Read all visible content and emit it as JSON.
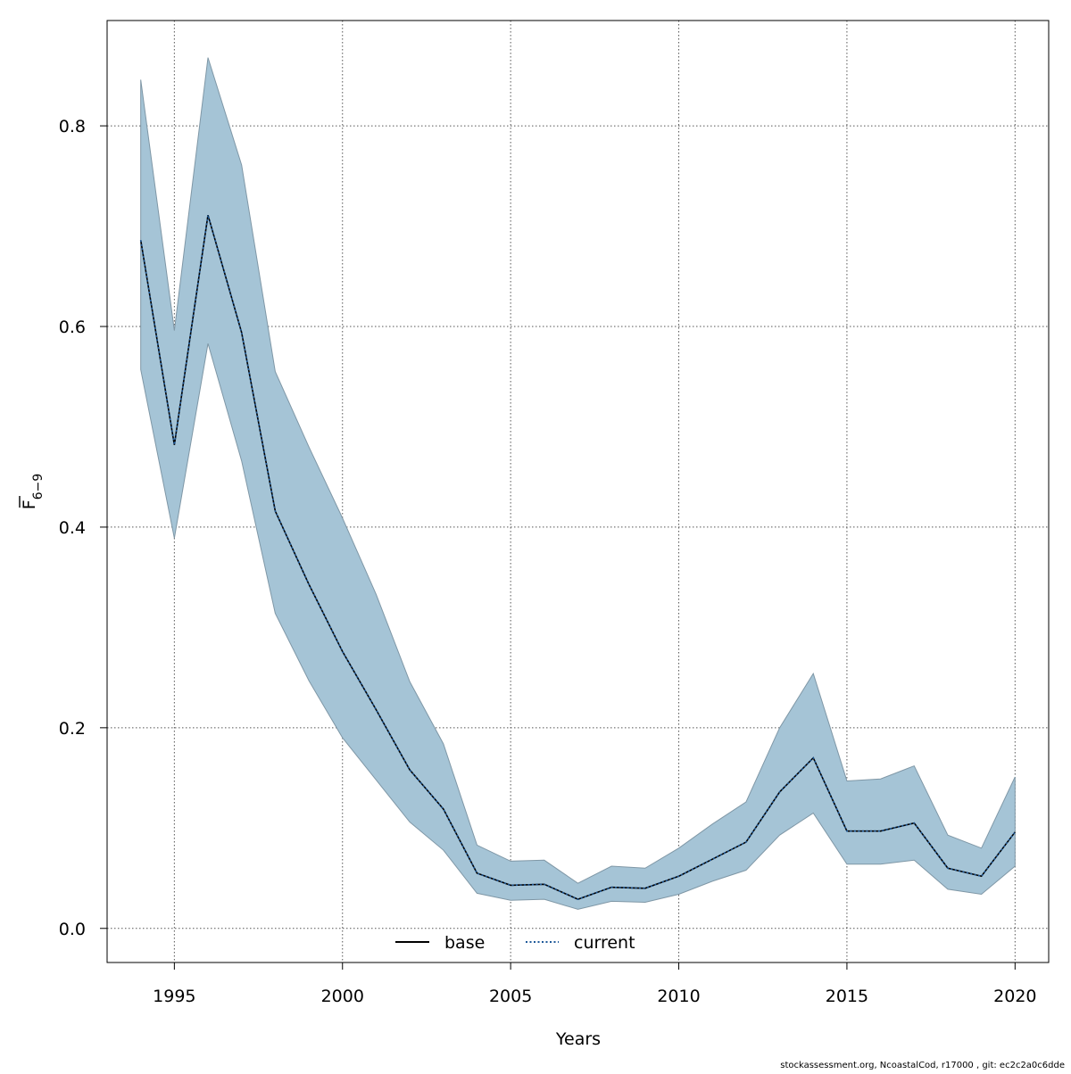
{
  "chart_data": {
    "type": "area",
    "xlabel": "Years",
    "ylabel": {
      "main": "F",
      "subscript": "6−9",
      "overline": true
    },
    "xlim": [
      1993,
      2021
    ],
    "ylim": [
      -0.034,
      0.905
    ],
    "x_ticks": [
      1995,
      2000,
      2005,
      2010,
      2015,
      2020
    ],
    "y_ticks": [
      0.0,
      0.2,
      0.4,
      0.6,
      0.8
    ],
    "y_tick_labels": [
      "0.0",
      "0.2",
      "0.4",
      "0.6",
      "0.8"
    ],
    "x_tick_labels": [
      "1995",
      "2000",
      "2005",
      "2010",
      "2015",
      "2020"
    ],
    "grid": true,
    "legend_position": "bottom-center",
    "x": [
      1994,
      1995,
      1996,
      1997,
      1998,
      1999,
      2000,
      2001,
      2002,
      2003,
      2004,
      2005,
      2006,
      2007,
      2008,
      2009,
      2010,
      2011,
      2012,
      2013,
      2014,
      2015,
      2016,
      2017,
      2018,
      2019,
      2020
    ],
    "series": [
      {
        "name": "base",
        "style": "solid",
        "color": "#000000",
        "values": [
          0.686,
          0.482,
          0.711,
          0.594,
          0.416,
          0.343,
          0.276,
          0.218,
          0.158,
          0.119,
          0.055,
          0.043,
          0.044,
          0.029,
          0.041,
          0.04,
          0.052,
          0.069,
          0.086,
          0.136,
          0.17,
          0.097,
          0.097,
          0.105,
          0.06,
          0.052,
          0.096
        ]
      },
      {
        "name": "current",
        "style": "dotted",
        "color": "#1f5a9a",
        "values": [
          0.686,
          0.482,
          0.711,
          0.594,
          0.416,
          0.343,
          0.276,
          0.218,
          0.158,
          0.119,
          0.055,
          0.043,
          0.044,
          0.029,
          0.041,
          0.04,
          0.052,
          0.069,
          0.086,
          0.136,
          0.17,
          0.097,
          0.097,
          0.105,
          0.06,
          0.052,
          0.096
        ]
      }
    ],
    "confidence_band": {
      "color": "#a5c4d6",
      "edge_color": "#7f97a6",
      "upper": [
        0.846,
        0.596,
        0.868,
        0.761,
        0.555,
        0.48,
        0.409,
        0.333,
        0.246,
        0.184,
        0.083,
        0.067,
        0.068,
        0.045,
        0.062,
        0.06,
        0.08,
        0.104,
        0.126,
        0.2,
        0.254,
        0.147,
        0.149,
        0.162,
        0.093,
        0.08,
        0.151
      ],
      "lower": [
        0.557,
        0.389,
        0.583,
        0.466,
        0.314,
        0.247,
        0.19,
        0.148,
        0.106,
        0.078,
        0.035,
        0.028,
        0.029,
        0.019,
        0.027,
        0.026,
        0.034,
        0.047,
        0.058,
        0.093,
        0.115,
        0.064,
        0.064,
        0.068,
        0.039,
        0.034,
        0.062
      ]
    }
  },
  "footer": {
    "text": "stockassessment.org, NcoastalCod, r17000 , git: ec2c2a0c6dde"
  }
}
